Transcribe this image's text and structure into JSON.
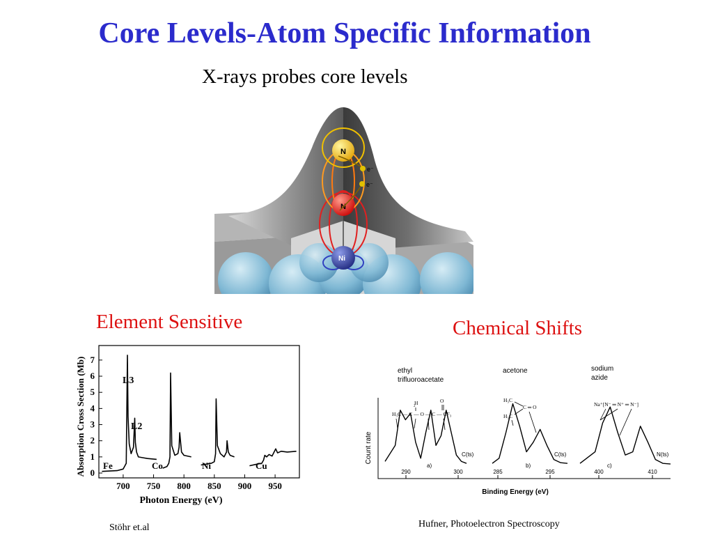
{
  "slide": {
    "title": "Core Levels-Atom Specific Information",
    "subtitle": "X-rays probes core levels",
    "label_left": "Element Sensitive",
    "label_right": "Chemical Shifts",
    "credit_left": "Stöhr et.al",
    "credit_right": "Hufner, Photoelectron Spectroscopy"
  },
  "illustration": {
    "atom_top": "N",
    "atom_mid": "N",
    "atom_bottom": "Ni",
    "electron1": "e⁻",
    "electron2": "e⁻"
  },
  "chart_data": [
    {
      "type": "line",
      "xlabel": "Photon Energy (eV)",
      "ylabel": "Absorption Cross Section (Mb)",
      "xlim": [
        660,
        990
      ],
      "ylim": [
        -0.3,
        7.9
      ],
      "x_ticks": [
        700,
        750,
        800,
        850,
        900,
        950
      ],
      "y_ticks": [
        0,
        1,
        2,
        3,
        4,
        5,
        6,
        7
      ],
      "element_labels": [
        "Fe",
        "Co",
        "Ni",
        "Cu"
      ],
      "edge_labels": [
        "L3",
        "L2"
      ],
      "series": [
        {
          "x": [
            665,
            690,
            700,
            705,
            707,
            708,
            710,
            713,
            717,
            719,
            720,
            722,
            725,
            732,
            740,
            755
          ],
          "y": [
            0.1,
            0.15,
            0.25,
            0.6,
            7.3,
            3.5,
            1.8,
            1.2,
            1.6,
            3.4,
            1.9,
            1.3,
            1.0,
            0.95,
            0.9,
            0.85
          ]
        },
        {
          "x": [
            765,
            772,
            775,
            777,
            778,
            780,
            785,
            790,
            792,
            793,
            796,
            800,
            812
          ],
          "y": [
            0.3,
            0.4,
            0.6,
            1.0,
            6.2,
            1.7,
            1.1,
            1.2,
            1.6,
            2.5,
            1.3,
            1.1,
            1.0
          ]
        },
        {
          "x": [
            828,
            845,
            850,
            852,
            853,
            855,
            860,
            866,
            870,
            871,
            873,
            876,
            883
          ],
          "y": [
            0.5,
            0.6,
            0.7,
            1.2,
            4.6,
            1.7,
            1.2,
            1.0,
            1.3,
            2.0,
            1.3,
            1.1,
            1.0
          ]
        },
        {
          "x": [
            908,
            920,
            928,
            931,
            933,
            936,
            940,
            945,
            951,
            954,
            960,
            970,
            985
          ],
          "y": [
            0.45,
            0.55,
            0.6,
            0.8,
            1.1,
            1.0,
            1.15,
            1.05,
            1.5,
            1.25,
            1.35,
            1.3,
            1.35
          ]
        }
      ]
    },
    {
      "type": "line",
      "xlabel": "Binding Energy (eV)",
      "ylabel": "Count rate",
      "panels": [
        {
          "title": "ethyl\ntrifluoroacetate",
          "tag": "a)",
          "core": "C(ts)",
          "ticks": [
            290,
            300
          ],
          "structure": "H3C-C(H2)-O-C(=O)-CF3",
          "x": [
            286,
            288,
            289,
            290,
            291,
            292,
            293,
            294,
            295,
            296,
            297,
            298,
            299,
            300,
            301,
            302
          ],
          "y": [
            0.05,
            0.3,
            0.85,
            0.7,
            0.8,
            0.35,
            0.1,
            0.5,
            0.85,
            0.3,
            0.45,
            0.85,
            0.5,
            0.15,
            0.05,
            0.02
          ]
        },
        {
          "title": "acetone",
          "tag": "b)",
          "core": "C(ts)",
          "ticks": [
            285,
            295
          ],
          "structure": "(H3C)2C=O",
          "x": [
            284,
            285,
            286,
            287,
            288,
            289,
            290,
            291,
            292,
            293,
            294,
            295
          ],
          "y": [
            0.02,
            0.1,
            0.5,
            0.95,
            0.6,
            0.2,
            0.35,
            0.55,
            0.3,
            0.08,
            0.03,
            0.02
          ]
        },
        {
          "title": "sodium\nazide",
          "tag": "c)",
          "core": "N(ts)",
          "ticks": [
            400,
            410
          ],
          "structure": "Na+[N−=N+=N−]",
          "x": [
            396,
            398,
            399,
            400,
            401,
            402,
            403,
            404,
            405,
            406,
            407,
            408
          ],
          "y": [
            0.02,
            0.2,
            0.65,
            0.9,
            0.5,
            0.15,
            0.2,
            0.6,
            0.35,
            0.08,
            0.02,
            0.01
          ]
        }
      ]
    }
  ]
}
